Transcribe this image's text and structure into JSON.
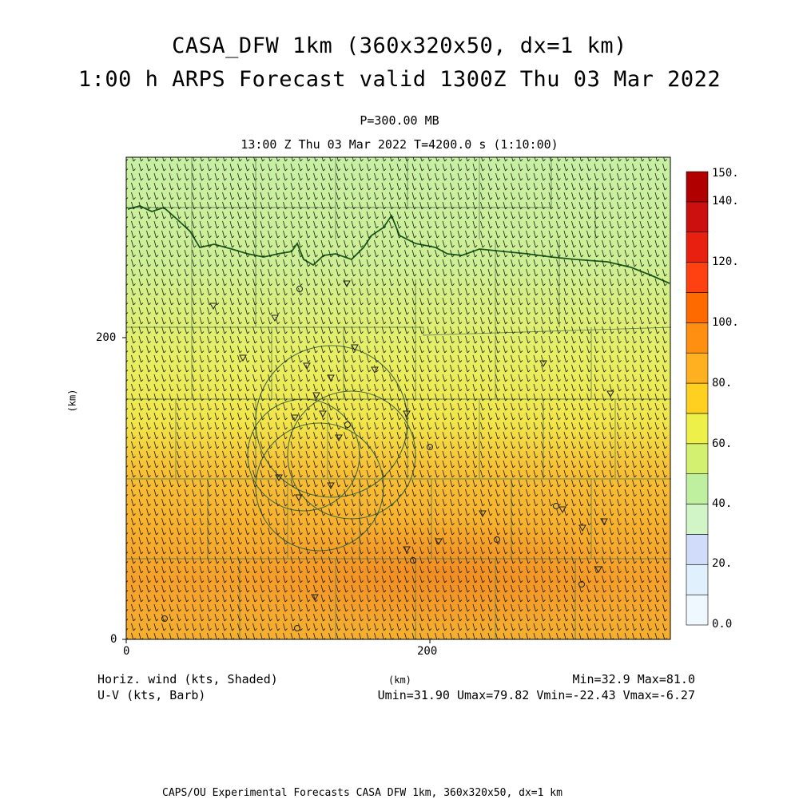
{
  "header": {
    "title_line1": "CASA_DFW 1km (360x320x50, dx=1 km)",
    "title_line2": "1:00 h ARPS Forecast valid 1300Z Thu 03 Mar 2022",
    "level": "P=300.00 MB",
    "time": "13:00 Z Thu 03 Mar 2022   T=4200.0 s (1:10:00)"
  },
  "axes": {
    "x_unit": "(km)",
    "y_unit": "(km)",
    "x_ticks": [
      "0",
      "200"
    ],
    "y_ticks": [
      "0",
      "200"
    ]
  },
  "colorbar": {
    "labels": [
      "150.",
      "140.",
      "120.",
      "100.",
      "80.",
      "60.",
      "40.",
      "20.",
      "0.0"
    ],
    "colors": [
      "#f0f8ff",
      "#e0f0fc",
      "#d0dcf8",
      "#d2f5c8",
      "#bff0a0",
      "#d4f070",
      "#eef04a",
      "#ffd020",
      "#ffb020",
      "#ff8f10",
      "#ff6a00",
      "#ff4010",
      "#e82010",
      "#cc1010",
      "#b00000"
    ]
  },
  "footer": {
    "left1": "Horiz. wind (kts, Shaded)",
    "left2": "U-V (kts, Barb)",
    "center_unit": "(km)",
    "stats1": "Min=32.9 Max=81.0",
    "stats2": "Umin=31.90 Umax=79.82 Vmin=-22.43 Vmax=-6.27",
    "credit": "CAPS/OU Experimental Forecasts  CASA DFW 1km, 360x320x50, dx=1 km"
  },
  "field": {
    "min": 32.9,
    "max": 81.0
  }
}
